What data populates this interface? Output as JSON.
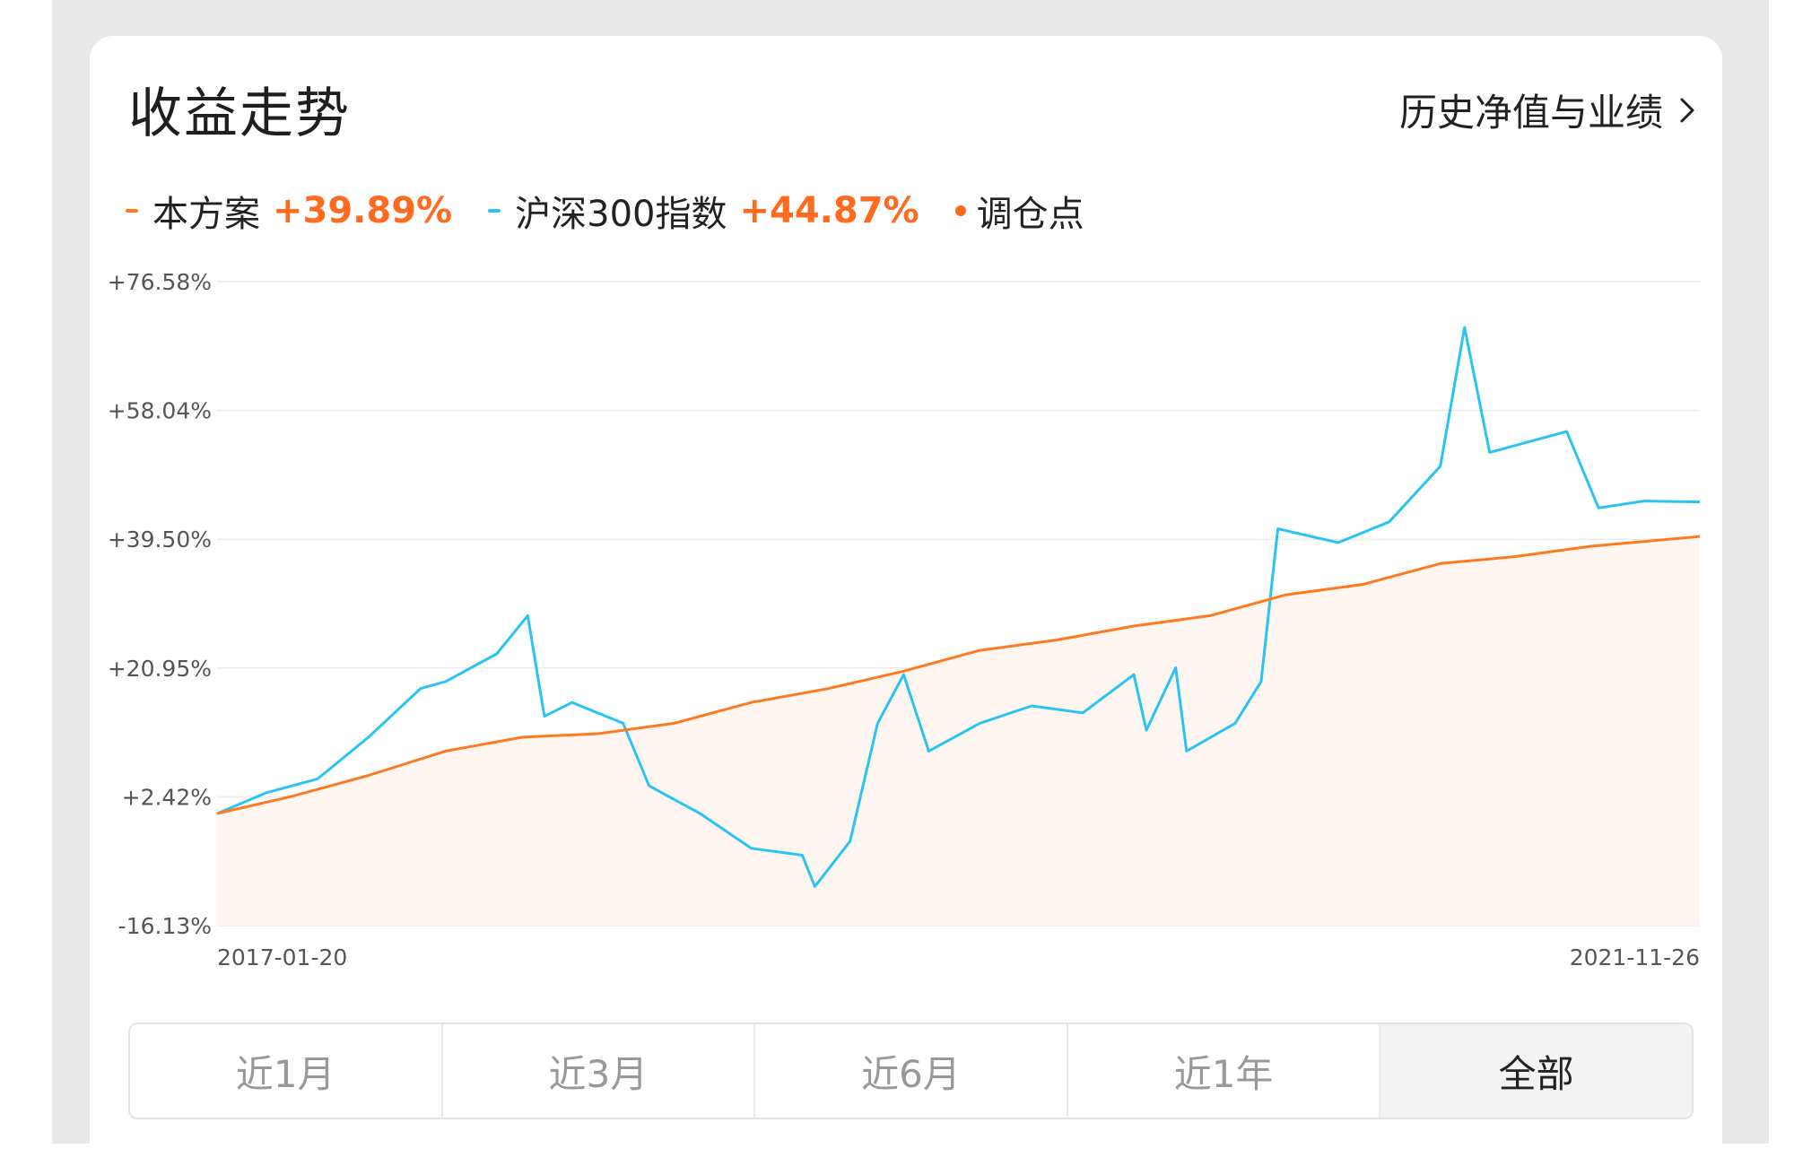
{
  "header": {
    "title": "收益走势",
    "history_link": "历史净值与业绩"
  },
  "legend": [
    {
      "label": "本方案",
      "value": "+39.89%",
      "color": "#ff7a1e",
      "marker": "dash"
    },
    {
      "label": "沪深300指数",
      "value": "+44.87%",
      "color": "#29c3f4",
      "marker": "dash"
    },
    {
      "label": "调仓点",
      "value": "",
      "color": "#ff6a1f",
      "marker": "dot"
    }
  ],
  "tabs": [
    {
      "label": "近1月",
      "active": false
    },
    {
      "label": "近3月",
      "active": false
    },
    {
      "label": "近6月",
      "active": false
    },
    {
      "label": "近1年",
      "active": false
    },
    {
      "label": "全部",
      "active": true
    }
  ],
  "chart_data": {
    "type": "line",
    "x_start_label": "2017-01-20",
    "x_end_label": "2021-11-26",
    "x_range": [
      "2017-01-20",
      "2021-11-26"
    ],
    "y_ticks": [
      "+76.58%",
      "+58.04%",
      "+39.50%",
      "+20.95%",
      "+2.42%",
      "-16.13%"
    ],
    "ylim": [
      -16.13,
      76.58
    ],
    "grid": true,
    "series": [
      {
        "name": "本方案",
        "color": "#ff7a1e",
        "area_fill": true,
        "points": [
          [
            "2017-01-20",
            0.0
          ],
          [
            "2017-04-20",
            2.5
          ],
          [
            "2017-07-20",
            5.5
          ],
          [
            "2017-10-20",
            9.0
          ],
          [
            "2018-01-20",
            11.0
          ],
          [
            "2018-04-20",
            11.5
          ],
          [
            "2018-07-20",
            13.0
          ],
          [
            "2018-10-20",
            16.0
          ],
          [
            "2019-01-20",
            18.0
          ],
          [
            "2019-04-20",
            20.5
          ],
          [
            "2019-07-20",
            23.5
          ],
          [
            "2019-10-20",
            25.0
          ],
          [
            "2020-01-20",
            27.0
          ],
          [
            "2020-04-20",
            28.5
          ],
          [
            "2020-07-20",
            31.5
          ],
          [
            "2020-10-20",
            33.0
          ],
          [
            "2021-01-20",
            36.0
          ],
          [
            "2021-04-20",
            37.0
          ],
          [
            "2021-07-20",
            38.5
          ],
          [
            "2021-11-26",
            39.89
          ]
        ]
      },
      {
        "name": "沪深300指数",
        "color": "#29c3f4",
        "area_fill": false,
        "points": [
          [
            "2017-01-20",
            0.0
          ],
          [
            "2017-03-20",
            3.0
          ],
          [
            "2017-05-20",
            5.0
          ],
          [
            "2017-07-20",
            11.0
          ],
          [
            "2017-09-20",
            18.0
          ],
          [
            "2017-10-20",
            19.0
          ],
          [
            "2017-12-20",
            23.0
          ],
          [
            "2018-01-26",
            28.5
          ],
          [
            "2018-02-15",
            14.0
          ],
          [
            "2018-03-20",
            16.0
          ],
          [
            "2018-05-20",
            13.0
          ],
          [
            "2018-06-20",
            4.0
          ],
          [
            "2018-08-20",
            0.0
          ],
          [
            "2018-10-20",
            -5.0
          ],
          [
            "2018-12-20",
            -6.0
          ],
          [
            "2019-01-04",
            -10.5
          ],
          [
            "2019-02-15",
            -4.0
          ],
          [
            "2019-03-20",
            13.0
          ],
          [
            "2019-04-20",
            20.0
          ],
          [
            "2019-05-20",
            9.0
          ],
          [
            "2019-07-20",
            13.0
          ],
          [
            "2019-09-20",
            15.5
          ],
          [
            "2019-11-20",
            14.5
          ],
          [
            "2020-01-20",
            20.0
          ],
          [
            "2020-02-04",
            12.0
          ],
          [
            "2020-03-10",
            21.0
          ],
          [
            "2020-03-23",
            9.0
          ],
          [
            "2020-05-20",
            13.0
          ],
          [
            "2020-06-20",
            19.0
          ],
          [
            "2020-07-10",
            41.0
          ],
          [
            "2020-09-20",
            39.0
          ],
          [
            "2020-11-20",
            42.0
          ],
          [
            "2021-01-20",
            50.0
          ],
          [
            "2021-02-18",
            70.0
          ],
          [
            "2021-03-20",
            52.0
          ],
          [
            "2021-05-20",
            54.0
          ],
          [
            "2021-06-20",
            55.0
          ],
          [
            "2021-07-28",
            44.0
          ],
          [
            "2021-09-20",
            45.0
          ],
          [
            "2021-11-26",
            44.87
          ]
        ]
      }
    ]
  }
}
